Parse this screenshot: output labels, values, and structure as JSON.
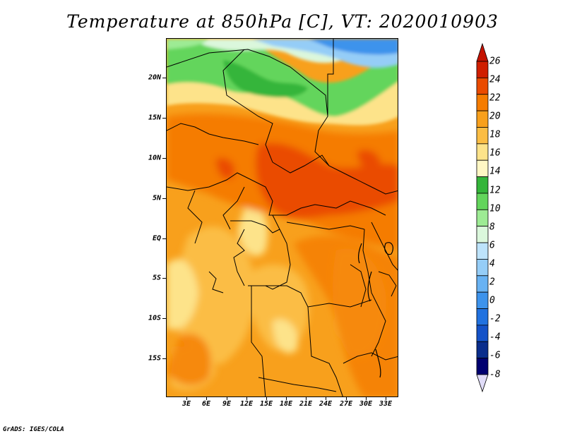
{
  "title": "Temperature at 850hPa [C], VT: 2020010903",
  "footer": "GrADS: IGES/COLA",
  "map": {
    "region": "Central Africa",
    "variable": "Temperature at 850hPa",
    "units": "C",
    "valid_time": "2020010903",
    "lat_labels": [
      "20N",
      "15N",
      "10N",
      "5N",
      "EQ",
      "5S",
      "10S",
      "15S"
    ],
    "lon_labels": [
      "3E",
      "6E",
      "9E",
      "12E",
      "15E",
      "18E",
      "21E",
      "24E",
      "27E",
      "30E",
      "33E"
    ]
  },
  "colorbar": {
    "labels": [
      "26",
      "24",
      "22",
      "20",
      "18",
      "16",
      "14",
      "12",
      "10",
      "8",
      "6",
      "4",
      "2",
      "0",
      "-2",
      "-4",
      "-6",
      "-8"
    ],
    "colors": [
      "#d01f00",
      "#ea4b00",
      "#f57c00",
      "#f8a01c",
      "#fbbd44",
      "#fde38a",
      "#fff7c4",
      "#34b53a",
      "#63d55c",
      "#9deb94",
      "#dbf7dc",
      "#bde3fb",
      "#95cdf7",
      "#68b2f3",
      "#3d93ec",
      "#2172e0",
      "#1452c8",
      "#0a2d8c",
      "#000070"
    ],
    "top_arrow_color": "#c41200",
    "bottom_arrow_color": "#e0dcf8"
  }
}
